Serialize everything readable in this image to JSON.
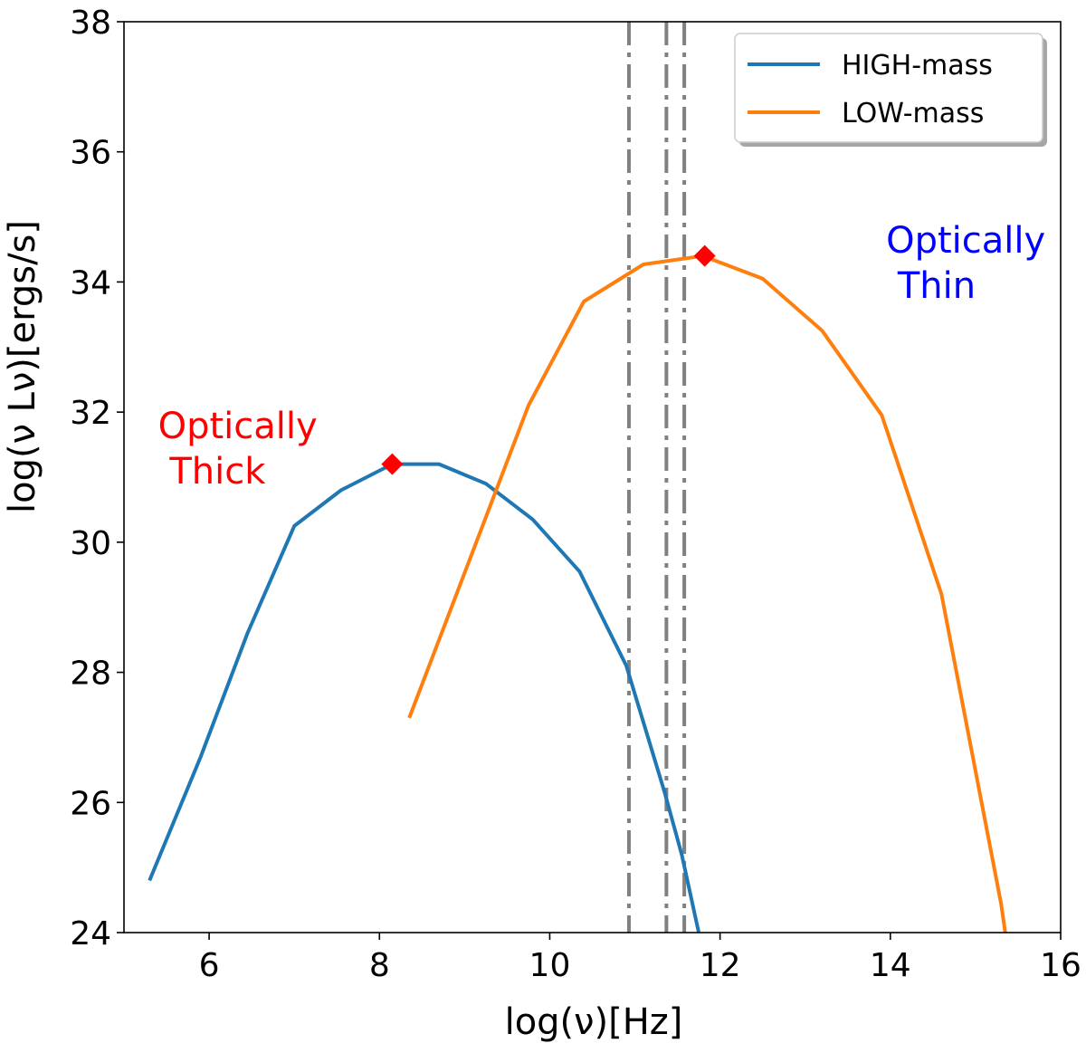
{
  "chart_data": {
    "type": "line",
    "title": "",
    "xlabel": "log(ν)[Hz]",
    "ylabel": "log(ν Lν)[ergs/s]",
    "xlim": [
      5,
      16
    ],
    "ylim": [
      24,
      38
    ],
    "xticks": [
      6,
      8,
      10,
      12,
      14,
      16
    ],
    "yticks": [
      24,
      26,
      28,
      30,
      32,
      34,
      36,
      38
    ],
    "grid": false,
    "legend_position": "top-right",
    "series": [
      {
        "name": "HIGH-mass",
        "color": "#1f77b4",
        "x": [
          5.3,
          5.9,
          6.45,
          7.0,
          7.55,
          8.15,
          8.7,
          9.25,
          9.8,
          10.35,
          10.9,
          11.35,
          11.55,
          11.75
        ],
        "y": [
          24.8,
          26.7,
          28.6,
          30.25,
          30.8,
          31.2,
          31.2,
          30.9,
          30.35,
          29.55,
          28.1,
          26.15,
          25.2,
          24.0
        ]
      },
      {
        "name": "LOW-mass",
        "color": "#ff7f0e",
        "x": [
          8.35,
          9.05,
          9.75,
          10.4,
          11.1,
          11.8,
          12.5,
          13.2,
          13.9,
          14.6,
          15.3,
          15.35
        ],
        "y": [
          27.3,
          29.7,
          32.1,
          33.7,
          34.27,
          34.4,
          34.05,
          33.25,
          31.95,
          29.2,
          24.45,
          24.0
        ]
      }
    ],
    "peaks": [
      {
        "series": "HIGH-mass",
        "x": 8.15,
        "y": 31.2,
        "color": "#ff0000"
      },
      {
        "series": "LOW-mass",
        "x": 11.82,
        "y": 34.4,
        "color": "#ff0000"
      }
    ],
    "vlines": [
      {
        "x": 10.93,
        "color": "#808080",
        "style": "dash-dot"
      },
      {
        "x": 11.37,
        "color": "#808080",
        "style": "dash-dot"
      },
      {
        "x": 11.58,
        "color": "#808080",
        "style": "dash-dot"
      }
    ],
    "annotations": [
      {
        "id": "thick",
        "lines": [
          "Optically",
          " Thick"
        ],
        "color": "#ff0000",
        "x": 5.4,
        "y": 31.6
      },
      {
        "id": "thin",
        "lines": [
          "Optically",
          " Thin"
        ],
        "color": "#0000ff",
        "x": 13.95,
        "y": 34.45
      }
    ]
  }
}
